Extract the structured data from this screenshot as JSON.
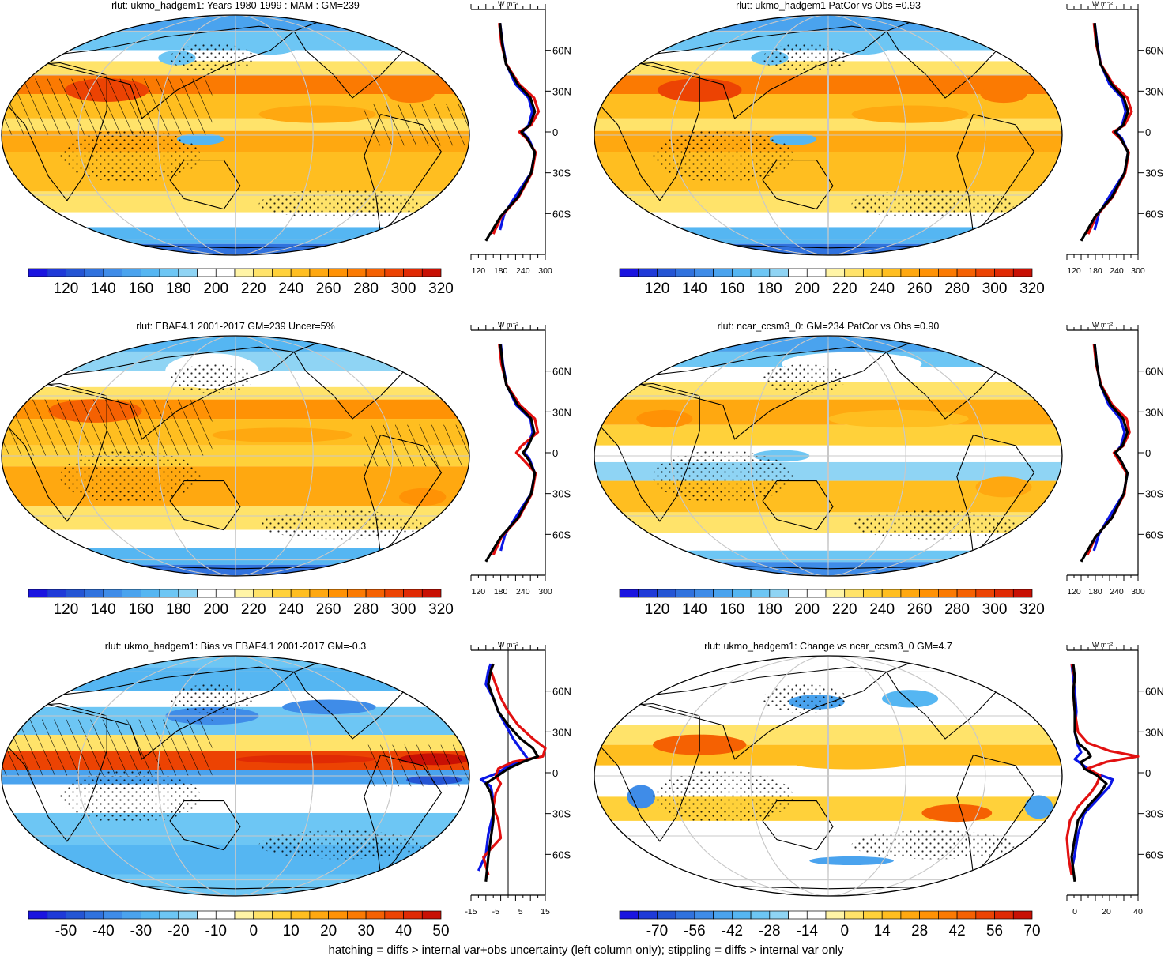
{
  "footer": "hatching = diffs > internal var+obs uncertainty (left column only); stippling = diffs > internal var only",
  "units_label": "W m⁻²",
  "lat_labels": [
    "60N",
    "30N",
    "0",
    "30S",
    "60S"
  ],
  "lat_values": [
    60,
    30,
    0,
    -30,
    -60
  ],
  "colorbars": {
    "abs": {
      "colors": [
        "#1a14e0",
        "#1f3ad8",
        "#2455d4",
        "#3072de",
        "#3f8ce8",
        "#4aa3ee",
        "#55b6f2",
        "#6dc6f4",
        "#8fd4f4",
        "#ffffff",
        "#ffffff",
        "#fff4a6",
        "#ffe36a",
        "#ffd13a",
        "#ffbe20",
        "#ffa810",
        "#ff9205",
        "#fb7a02",
        "#f56102",
        "#ec4303",
        "#e02a04",
        "#c81004"
      ],
      "labels": [
        "120",
        "140",
        "160",
        "180",
        "200",
        "220",
        "240",
        "260",
        "280",
        "300",
        "320"
      ]
    },
    "bias": {
      "colors": [
        "#1a14e0",
        "#1f3ad8",
        "#2455d4",
        "#3072de",
        "#3f8ce8",
        "#4aa3ee",
        "#55b6f2",
        "#6dc6f4",
        "#8fd4f4",
        "#ffffff",
        "#ffffff",
        "#fff4a6",
        "#ffe36a",
        "#ffd13a",
        "#ffbe20",
        "#ffa810",
        "#ff9205",
        "#fb7a02",
        "#f56102",
        "#ec4303",
        "#e02a04",
        "#c81004"
      ],
      "labels": [
        "-50",
        "-40",
        "-30",
        "-20",
        "-10",
        "0",
        "10",
        "20",
        "30",
        "40",
        "50"
      ]
    },
    "change": {
      "colors": [
        "#1a14e0",
        "#1f3ad8",
        "#2455d4",
        "#3072de",
        "#3f8ce8",
        "#4aa3ee",
        "#55b6f2",
        "#6dc6f4",
        "#8fd4f4",
        "#ffffff",
        "#ffffff",
        "#fff4a6",
        "#ffe36a",
        "#ffd13a",
        "#ffbe20",
        "#ffa810",
        "#ff9205",
        "#fb7a02",
        "#f56102",
        "#ec4303",
        "#e02a04",
        "#c81004"
      ],
      "labels": [
        "-70",
        "-56",
        "-42",
        "-28",
        "-14",
        "0",
        "14",
        "28",
        "42",
        "56",
        "70"
      ]
    }
  },
  "chart_data": [
    {
      "id": "p1",
      "type": "heatmap",
      "title": "rlut: ukmo_hadgem1: Years 1980-1999 : MAM : GM=239",
      "mode": "abs",
      "colorbar": "abs",
      "hatch": true,
      "stipple": true,
      "profile": {
        "xlim": [
          100,
          300
        ],
        "xticks": [
          120,
          180,
          240,
          300
        ],
        "zero_line": false,
        "series": [
          {
            "name": "blue",
            "color": "#0a16e6",
            "lat": [
              -72,
              -60,
              -45,
              -30,
              -15,
              -5,
              0,
              5,
              15,
              25,
              35,
              50,
              65,
              80
            ],
            "values": [
              178,
              190,
              225,
              262,
              272,
              255,
              238,
              255,
              265,
              255,
              220,
              195,
              185,
              178
            ]
          },
          {
            "name": "red",
            "color": "#e21010",
            "lat": [
              -75,
              -62,
              -48,
              -30,
              -15,
              -5,
              0,
              5,
              15,
              25,
              35,
              50,
              65,
              80
            ],
            "values": [
              160,
              182,
              228,
              264,
              274,
              250,
              230,
              262,
              282,
              270,
              230,
              195,
              182,
              176
            ]
          },
          {
            "name": "black",
            "color": "#000000",
            "lat": [
              -80,
              -62,
              -48,
              -30,
              -15,
              -5,
              0,
              5,
              15,
              25,
              35,
              50,
              65,
              80
            ],
            "values": [
              140,
              180,
              226,
              262,
              272,
              252,
              236,
              258,
              272,
              260,
              226,
              194,
              184,
              178
            ]
          }
        ]
      }
    },
    {
      "id": "p2",
      "type": "heatmap",
      "title": "rlut: ukmo_hadgem1 PatCor vs Obs =0.93",
      "mode": "abs",
      "colorbar": "abs",
      "hatch": false,
      "stipple": true,
      "profile": {
        "xlim": [
          100,
          300
        ],
        "xticks": [
          120,
          180,
          240,
          300
        ],
        "zero_line": false,
        "series": [
          {
            "name": "blue",
            "color": "#0a16e6",
            "lat": [
              -72,
              -60,
              -45,
              -30,
              -15,
              -5,
              0,
              5,
              15,
              25,
              35,
              50,
              65,
              80
            ],
            "values": [
              178,
              190,
              225,
              262,
              272,
              255,
              238,
              255,
              265,
              255,
              220,
              195,
              185,
              178
            ]
          },
          {
            "name": "red",
            "color": "#e21010",
            "lat": [
              -75,
              -62,
              -48,
              -30,
              -15,
              -5,
              0,
              5,
              15,
              25,
              35,
              50,
              65,
              80
            ],
            "values": [
              160,
              182,
              228,
              264,
              274,
              250,
              230,
              262,
              282,
              270,
              230,
              195,
              182,
              176
            ]
          },
          {
            "name": "black",
            "color": "#000000",
            "lat": [
              -80,
              -62,
              -48,
              -30,
              -15,
              -5,
              0,
              5,
              15,
              25,
              35,
              50,
              65,
              80
            ],
            "values": [
              140,
              180,
              226,
              262,
              272,
              252,
              236,
              258,
              272,
              260,
              226,
              194,
              184,
              178
            ]
          }
        ]
      }
    },
    {
      "id": "p3",
      "type": "heatmap",
      "title": "rlut: EBAF4.1 2001-2017 GM=239 Uncer=5%",
      "mode": "obs",
      "colorbar": "abs",
      "hatch": true,
      "stipple": true,
      "profile": {
        "xlim": [
          100,
          300
        ],
        "xticks": [
          120,
          180,
          240,
          300
        ],
        "zero_line": false,
        "series": [
          {
            "name": "blue",
            "color": "#0a16e6",
            "lat": [
              -72,
              -60,
              -45,
              -30,
              -15,
              -5,
              0,
              5,
              15,
              25,
              35,
              50,
              65,
              80
            ],
            "values": [
              180,
              192,
              226,
              262,
              272,
              258,
              244,
              252,
              266,
              260,
              222,
              196,
              186,
              180
            ]
          },
          {
            "name": "red",
            "color": "#e21010",
            "lat": [
              -75,
              -62,
              -48,
              -30,
              -15,
              -5,
              0,
              5,
              15,
              25,
              35,
              50,
              65,
              80
            ],
            "values": [
              160,
              182,
              228,
              264,
              274,
              240,
              222,
              236,
              280,
              272,
              232,
              196,
              182,
              176
            ]
          },
          {
            "name": "black",
            "color": "#000000",
            "lat": [
              -80,
              -62,
              -48,
              -30,
              -15,
              -5,
              0,
              5,
              15,
              25,
              35,
              50,
              65,
              80
            ],
            "values": [
              140,
              180,
              226,
              262,
              272,
              255,
              240,
              254,
              270,
              262,
              226,
              195,
              185,
              179
            ]
          }
        ]
      }
    },
    {
      "id": "p4",
      "type": "heatmap",
      "title": "rlut: ncar_ccsm3_0: GM=234 PatCor vs Obs =0.90",
      "mode": "abs2",
      "colorbar": "abs",
      "hatch": false,
      "stipple": true,
      "profile": {
        "xlim": [
          100,
          300
        ],
        "xticks": [
          120,
          180,
          240,
          300
        ],
        "zero_line": false,
        "series": [
          {
            "name": "blue",
            "color": "#0a16e6",
            "lat": [
              -72,
              -60,
              -45,
              -30,
              -15,
              -5,
              0,
              5,
              15,
              25,
              35,
              50,
              65,
              80
            ],
            "values": [
              176,
              190,
              224,
              260,
              270,
              250,
              236,
              252,
              262,
              250,
              218,
              194,
              184,
              178
            ]
          },
          {
            "name": "red",
            "color": "#e21010",
            "lat": [
              -75,
              -62,
              -48,
              -30,
              -15,
              -5,
              0,
              5,
              15,
              25,
              35,
              50,
              65,
              80
            ],
            "values": [
              158,
              180,
              226,
              262,
              268,
              244,
              232,
              258,
              276,
              268,
              228,
              196,
              182,
              176
            ]
          },
          {
            "name": "black",
            "color": "#000000",
            "lat": [
              -80,
              -62,
              -48,
              -30,
              -15,
              -5,
              0,
              5,
              15,
              25,
              35,
              50,
              65,
              80
            ],
            "values": [
              140,
              180,
              226,
              260,
              270,
              250,
              236,
              256,
              270,
              258,
              224,
              194,
              184,
              178
            ]
          }
        ]
      }
    },
    {
      "id": "p5",
      "type": "heatmap",
      "title": "rlut: ukmo_hadgem1: Bias vs EBAF4.1 2001-2017 GM=-0.3",
      "mode": "bias",
      "colorbar": "bias",
      "hatch": true,
      "stipple": true,
      "profile": {
        "xlim": [
          -15,
          15
        ],
        "xticks": [
          -15,
          -5,
          5,
          15
        ],
        "zero_line": true,
        "series": [
          {
            "name": "blue",
            "color": "#0a16e6",
            "lat": [
              -72,
              -60,
              -45,
              -30,
              -20,
              -10,
              -5,
              0,
              5,
              10,
              15,
              25,
              35,
              45,
              55,
              65,
              75,
              80
            ],
            "values": [
              -12,
              -9,
              -8,
              -6,
              -6,
              -7,
              -11,
              -4,
              0,
              8,
              6,
              2,
              -1,
              -4,
              -6,
              -9,
              -8,
              -7
            ]
          },
          {
            "name": "red",
            "color": "#e21010",
            "lat": [
              -75,
              -62,
              -48,
              -35,
              -25,
              -15,
              -8,
              -2,
              3,
              8,
              12,
              18,
              25,
              35,
              45,
              55,
              65,
              75,
              80
            ],
            "values": [
              -8,
              -10,
              -3,
              -4,
              -6,
              -5,
              -3,
              -5,
              -4,
              2,
              14,
              16,
              10,
              4,
              0,
              -3,
              -5,
              -7,
              -6
            ]
          },
          {
            "name": "black",
            "color": "#000000",
            "lat": [
              -80,
              -62,
              -48,
              -35,
              -25,
              -15,
              -8,
              -2,
              3,
              8,
              12,
              18,
              25,
              35,
              45,
              55,
              65,
              75,
              80
            ],
            "values": [
              -9,
              -8,
              -7,
              -6,
              -6,
              -7,
              -9,
              -4,
              0,
              6,
              12,
              10,
              5,
              0,
              -4,
              -6,
              -8,
              -7,
              -6
            ]
          }
        ]
      }
    },
    {
      "id": "p6",
      "type": "heatmap",
      "title": "rlut: ukmo_hadgem1: Change vs ncar_ccsm3_0 GM=4.7",
      "mode": "change",
      "colorbar": "change",
      "hatch": false,
      "stipple": true,
      "profile": {
        "xlim": [
          -5,
          40
        ],
        "xticks": [
          0,
          20,
          40
        ],
        "zero_line": false,
        "series": [
          {
            "name": "blue",
            "color": "#0a16e6",
            "lat": [
              -72,
              -60,
              -45,
              -30,
              -20,
              -10,
              -5,
              0,
              5,
              10,
              15,
              20,
              30,
              45,
              60,
              70,
              80
            ],
            "values": [
              -2,
              0,
              2,
              6,
              14,
              22,
              24,
              12,
              6,
              0,
              4,
              2,
              0,
              1,
              0,
              -1,
              -2
            ]
          },
          {
            "name": "red",
            "color": "#e21010",
            "lat": [
              -75,
              -62,
              -48,
              -35,
              -25,
              -15,
              -8,
              -2,
              3,
              8,
              12,
              16,
              22,
              30,
              45,
              60,
              70,
              80
            ],
            "values": [
              -2,
              -4,
              -6,
              -3,
              2,
              10,
              14,
              16,
              8,
              20,
              40,
              22,
              8,
              2,
              0,
              -1,
              0,
              -2
            ]
          },
          {
            "name": "black",
            "color": "#000000",
            "lat": [
              -80,
              -62,
              -48,
              -35,
              -25,
              -15,
              -8,
              -2,
              3,
              8,
              12,
              16,
              22,
              30,
              45,
              60,
              70,
              80
            ],
            "values": [
              0,
              -2,
              0,
              2,
              8,
              16,
              20,
              14,
              6,
              4,
              10,
              8,
              2,
              0,
              0,
              -1,
              0,
              -1
            ]
          }
        ]
      }
    }
  ]
}
